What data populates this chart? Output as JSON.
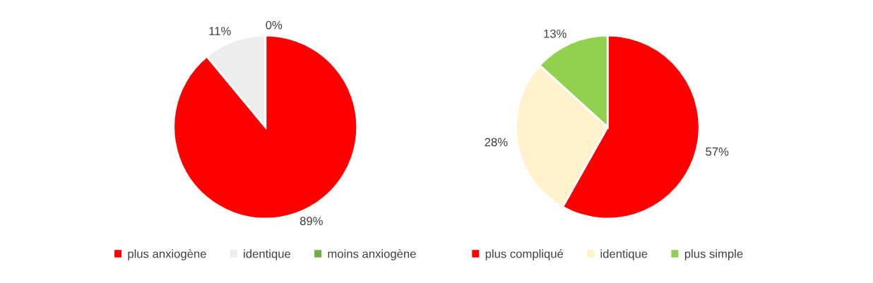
{
  "chart_data": [
    {
      "type": "pie",
      "categories": [
        "plus anxiogène",
        "identique",
        "moins anxiogène"
      ],
      "values": [
        89,
        11,
        0
      ],
      "colors": [
        "#ff0000",
        "#ededed",
        "#70ad47"
      ],
      "value_labels": [
        "89%",
        "11%",
        "0%"
      ],
      "legend": "bottom"
    },
    {
      "type": "pie",
      "categories": [
        "plus compliqué",
        "identique",
        "plus simple"
      ],
      "values": [
        57,
        28,
        13
      ],
      "colors": [
        "#ff0000",
        "#fff2cc",
        "#92d050"
      ],
      "value_labels": [
        "57%",
        "28%",
        "13%"
      ],
      "legend": "bottom"
    }
  ]
}
